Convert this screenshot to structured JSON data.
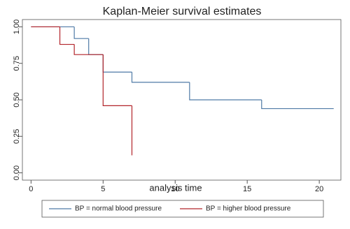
{
  "chart_data": {
    "type": "step",
    "title": "Kaplan-Meier survival estimates",
    "x_label": "analysis time",
    "xlim": [
      -0.6,
      21.5
    ],
    "xticks": [
      0,
      5,
      10,
      15,
      20
    ],
    "ylim": [
      -0.05,
      1.05
    ],
    "yticks": [
      {
        "value": 0,
        "label": "0.00"
      },
      {
        "value": 0.25,
        "label": "0.25"
      },
      {
        "value": 0.5,
        "label": "0.50"
      },
      {
        "value": 0.75,
        "label": "0.75"
      },
      {
        "value": 1,
        "label": "1.00"
      }
    ],
    "grid": false,
    "legend": "bottom",
    "series": [
      {
        "name": "BP = normal blood pressure",
        "color": "#4f7aa6",
        "x": [
          0,
          3,
          4,
          5,
          7,
          11,
          16,
          21
        ],
        "values": [
          1,
          0.92,
          0.81,
          0.69,
          0.62,
          0.5,
          0.44,
          0.44
        ]
      },
      {
        "name": "BP = higher blood pressure",
        "color": "#b2242a",
        "x": [
          0,
          2,
          3,
          5,
          7
        ],
        "values": [
          1,
          0.88,
          0.81,
          0.46,
          0.12
        ]
      }
    ]
  }
}
